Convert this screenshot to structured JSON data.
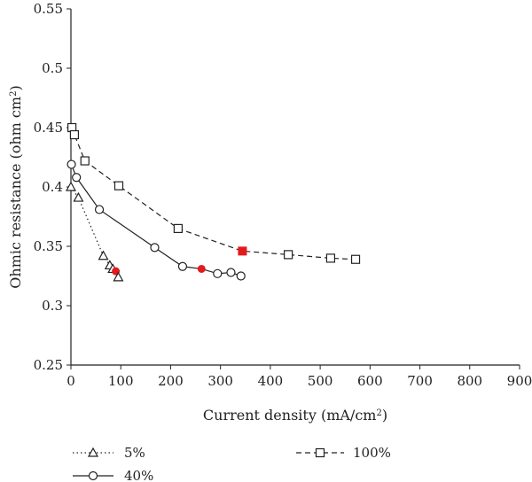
{
  "chart_data": {
    "type": "line",
    "xlabel_main": "Current density (mA/cm",
    "xlabel_sup": "2",
    "xlabel_end": ")",
    "ylabel_main": "Ohmic resistance (ohm cm",
    "ylabel_sup": "2",
    "ylabel_end": ")",
    "xlim": [
      0,
      900
    ],
    "ylim": [
      0.25,
      0.55
    ],
    "x_ticks": [
      "0",
      "100",
      "200",
      "300",
      "400",
      "500",
      "600",
      "700",
      "800",
      "900"
    ],
    "y_ticks": [
      "0.25",
      "0.3",
      "0.35",
      "0.4",
      "0.45",
      "0.5",
      "0.55"
    ],
    "legend_placement": "bottom",
    "highlight_color": "#e31a1c",
    "series": [
      {
        "name": "5%",
        "line_style": "dotted",
        "marker": "triangle-open",
        "x": [
          0,
          15,
          65,
          78,
          84,
          90,
          95
        ],
        "y": [
          0.4,
          0.391,
          0.342,
          0.334,
          0.331,
          0.329,
          0.324
        ],
        "highlight_index": 5
      },
      {
        "name": "40%",
        "line_style": "solid",
        "marker": "circle-open",
        "x": [
          1,
          11,
          57,
          168,
          224,
          262,
          294,
          321,
          341
        ],
        "y": [
          0.419,
          0.408,
          0.381,
          0.349,
          0.333,
          0.331,
          0.327,
          0.328,
          0.325
        ],
        "highlight_index": 5
      },
      {
        "name": "100%",
        "line_style": "dashed",
        "marker": "square-open",
        "x": [
          2,
          7,
          28,
          96,
          215,
          344,
          436,
          521,
          571
        ],
        "y": [
          0.45,
          0.444,
          0.422,
          0.401,
          0.365,
          0.346,
          0.343,
          0.34,
          0.339
        ],
        "highlight_index": 5
      }
    ]
  }
}
